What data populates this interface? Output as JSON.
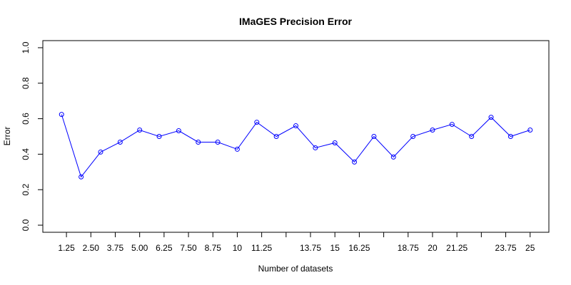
{
  "chart_data": {
    "type": "line",
    "title": "IMaGES Precision Error",
    "xlabel": "Number of datasets",
    "ylabel": "Error",
    "x": [
      1,
      2,
      3,
      4,
      5,
      6,
      7,
      8,
      9,
      10,
      11,
      12,
      13,
      14,
      15,
      16,
      17,
      18,
      19,
      20,
      21,
      22,
      23,
      24,
      25
    ],
    "series": [
      {
        "name": "Error",
        "color": "#0000ff",
        "values": [
          0.624,
          0.272,
          0.412,
          0.468,
          0.536,
          0.5,
          0.532,
          0.468,
          0.468,
          0.428,
          0.58,
          0.5,
          0.56,
          0.436,
          0.464,
          0.356,
          0.5,
          0.384,
          0.5,
          0.536,
          0.568,
          0.5,
          0.608,
          0.5,
          0.536
        ]
      }
    ],
    "xlim": [
      0.04,
      25.96
    ],
    "ylim": [
      -0.04,
      1.04
    ],
    "xticks": [
      1.25,
      {
        "value": 2.5,
        "label": "2.50"
      },
      3.75,
      {
        "value": 5,
        "label": "5.00"
      },
      6.25,
      {
        "value": 7.5,
        "label": "7.50"
      },
      8.75,
      10,
      11.25,
      {
        "value": 12.5,
        "label": null
      },
      13.75,
      15,
      16.25,
      {
        "value": 17.5,
        "label": null
      },
      18.75,
      20,
      21.25,
      {
        "value": 22.5,
        "label": null
      },
      23.75,
      25
    ],
    "yticks": [
      {
        "value": 0,
        "label": "0.0"
      },
      0.2,
      0.4,
      0.6,
      0.8,
      {
        "value": 1,
        "label": "1.0"
      }
    ]
  }
}
